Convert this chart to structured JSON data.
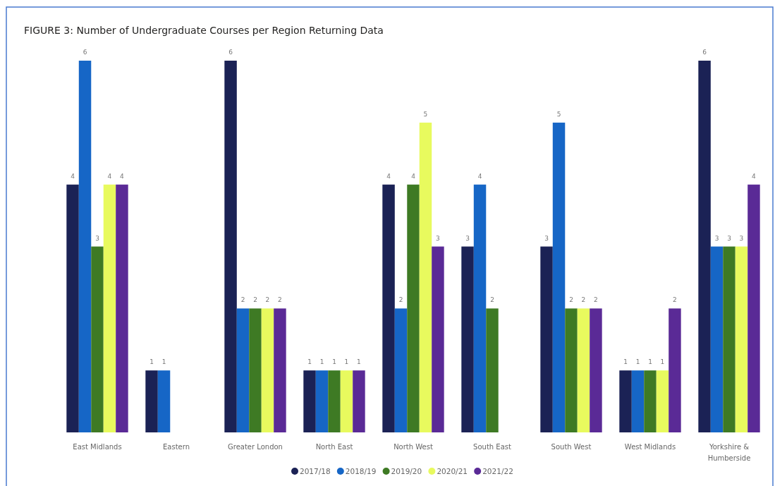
{
  "chart_data": {
    "type": "bar",
    "title": "FIGURE 3: Number of Undergraduate Courses per Region Returning Data",
    "categories": [
      "East Midlands",
      "Eastern",
      "Greater London",
      "North East",
      "North West",
      "South East",
      "South West",
      "West Midlands",
      "Yorkshire & Humberside"
    ],
    "series": [
      {
        "name": "2017/18",
        "color": "#1b2255",
        "values": [
          4,
          1,
          6,
          1,
          4,
          3,
          3,
          1,
          6
        ]
      },
      {
        "name": "2018/19",
        "color": "#1666c6",
        "values": [
          6,
          1,
          2,
          1,
          2,
          4,
          5,
          1,
          3
        ]
      },
      {
        "name": "2019/20",
        "color": "#3e7a24",
        "values": [
          3,
          null,
          2,
          1,
          4,
          2,
          2,
          1,
          3
        ]
      },
      {
        "name": "2020/21",
        "color": "#e8fa5e",
        "values": [
          4,
          null,
          2,
          1,
          5,
          null,
          2,
          1,
          3
        ]
      },
      {
        "name": "2021/22",
        "color": "#5a2a96",
        "values": [
          4,
          null,
          2,
          1,
          3,
          null,
          2,
          2,
          4
        ]
      }
    ],
    "data_labels": true,
    "legend": "bottom",
    "grid": false
  }
}
